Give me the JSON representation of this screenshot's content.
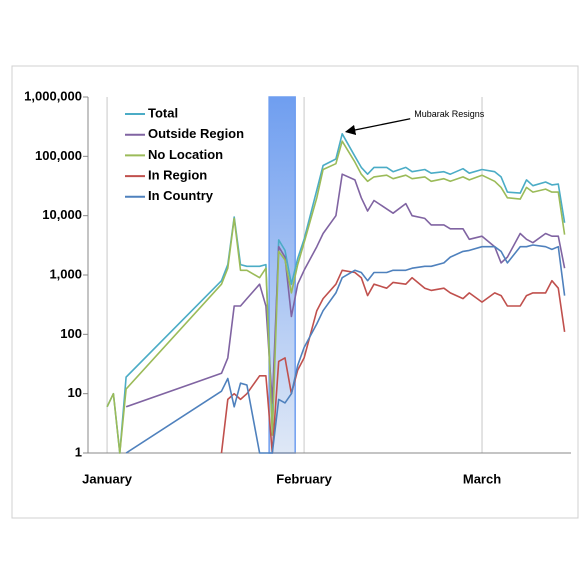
{
  "chart_data": {
    "type": "line",
    "log_scale": true,
    "xgrid": true,
    "legend": "top-left",
    "x": [
      0,
      1,
      2,
      3,
      18,
      19,
      20,
      21,
      22,
      24,
      25,
      26,
      27,
      28,
      29,
      30,
      31,
      33,
      34,
      36,
      37,
      39,
      40,
      41,
      42,
      44,
      45,
      47,
      48,
      50,
      51,
      53,
      54,
      56,
      57,
      59,
      61,
      62,
      63,
      65,
      66,
      67,
      69,
      70,
      71,
      72
    ],
    "xlim": [
      -3,
      73
    ],
    "xticks": [
      {
        "value": 0,
        "label": "January"
      },
      {
        "value": 31,
        "label": "February"
      },
      {
        "value": 59,
        "label": "March"
      }
    ],
    "ylim": [
      1,
      1000000
    ],
    "yticks": [
      1,
      10,
      100,
      {
        "value": 1000,
        "label": "1,000"
      },
      {
        "value": 10000,
        "label": "10,000"
      },
      {
        "value": 100000,
        "label": "100,000"
      },
      {
        "value": 1000000,
        "label": "1,000,000"
      }
    ],
    "highlight": {
      "x": [
        25.5,
        29.6
      ],
      "color": "#6f9ef0"
    },
    "annotation": {
      "text": "Mubarak Resigns",
      "x": 37,
      "y": 240000
    },
    "series": [
      {
        "name": "Total",
        "color": "#4bacc6",
        "values": [
          6,
          10,
          1,
          19,
          800,
          1500,
          9500,
          1500,
          1400,
          1400,
          1500,
          3,
          3900,
          2600,
          700,
          1900,
          4000,
          27000,
          70000,
          90000,
          240000,
          100000,
          65000,
          50000,
          65000,
          65000,
          55000,
          65000,
          55000,
          60000,
          52000,
          55000,
          50000,
          62000,
          52000,
          60000,
          55000,
          45000,
          25000,
          24000,
          40000,
          32000,
          37000,
          33000,
          34000,
          7600
        ]
      },
      {
        "name": "Outside Region",
        "color": "#8064a2",
        "values": [
          null,
          null,
          null,
          6,
          22,
          40,
          300,
          300,
          400,
          700,
          300,
          7,
          3000,
          2000,
          200,
          700,
          1200,
          3000,
          5000,
          10000,
          50000,
          40000,
          20000,
          12000,
          18000,
          13000,
          11000,
          16000,
          10000,
          9000,
          7000,
          7000,
          6000,
          6000,
          4000,
          4500,
          3000,
          1600,
          2000,
          5000,
          4000,
          3500,
          5000,
          4500,
          4500,
          1300
        ]
      },
      {
        "name": "No Location",
        "color": "#9bbb59",
        "values": [
          6,
          10,
          1,
          12,
          700,
          1300,
          9000,
          1200,
          1200,
          900,
          1300,
          2,
          2500,
          1800,
          500,
          1500,
          3500,
          20000,
          60000,
          75000,
          180000,
          80000,
          50000,
          38000,
          45000,
          48000,
          42000,
          48000,
          42000,
          45000,
          38000,
          42000,
          38000,
          45000,
          40000,
          48000,
          38000,
          30000,
          20000,
          19000,
          30000,
          25000,
          28000,
          25000,
          25000,
          4800
        ]
      },
      {
        "name": "In Region",
        "color": "#c0504d",
        "values": [
          null,
          null,
          null,
          null,
          1,
          8,
          10,
          8,
          10,
          20,
          20,
          1,
          35,
          40,
          10,
          25,
          40,
          250,
          400,
          700,
          1200,
          1100,
          900,
          450,
          700,
          600,
          750,
          700,
          900,
          600,
          550,
          600,
          500,
          400,
          500,
          350,
          500,
          450,
          300,
          300,
          450,
          500,
          500,
          800,
          600,
          110
        ]
      },
      {
        "name": "In Country",
        "color": "#4f81bd",
        "values": [
          null,
          null,
          null,
          1,
          11,
          18,
          6,
          15,
          14,
          1,
          1,
          1,
          8,
          7,
          10,
          30,
          60,
          150,
          250,
          500,
          900,
          1200,
          1100,
          800,
          1100,
          1100,
          1200,
          1200,
          1300,
          1400,
          1400,
          1600,
          2000,
          2500,
          2600,
          3000,
          3000,
          2500,
          1600,
          3000,
          3000,
          3200,
          3000,
          2700,
          3000,
          450
        ]
      }
    ]
  }
}
